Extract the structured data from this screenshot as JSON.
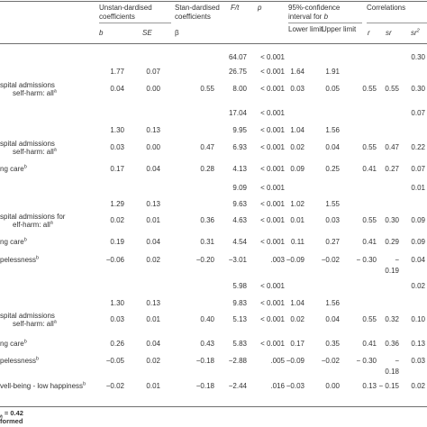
{
  "header": {
    "unstd": "Unstan-dardised coefficients",
    "std": "Stan-dardised coefficients",
    "ft": "F/t",
    "p": "p",
    "ci": "95%-confidence interval for",
    "ci_b": "b",
    "corr": "Correlations"
  },
  "subheader": {
    "b": "b",
    "se": "SE",
    "beta": "β",
    "lower": "Lower limit",
    "upper": "Upper limit",
    "r": "r",
    "sr": "sr",
    "sr2": "sr"
  },
  "rows": [
    {
      "label": "",
      "b": "",
      "se": "",
      "beta": "",
      "ft": "64.07",
      "p": "< 0.001",
      "ll": "",
      "ul": "",
      "r": "",
      "sr": "",
      "sr2": "0.30"
    },
    {
      "label": "",
      "b": "1.77",
      "se": "0.07",
      "beta": "",
      "ft": "26.75",
      "p": "< 0.001",
      "ll": "1.64",
      "ul": "1.91",
      "r": "",
      "sr": "",
      "sr2": ""
    },
    {
      "label": "spital admissions",
      "label2": "self-harm: all",
      "sup": "a",
      "b": "0.04",
      "se": "0.00",
      "beta": "0.55",
      "ft": "8.00",
      "p": "< 0.001",
      "ll": "0.03",
      "ul": "0.05",
      "r": "0.55",
      "sr": "0.55",
      "sr2": "0.30"
    },
    {
      "label": "",
      "b": "",
      "se": "",
      "beta": "",
      "ft": "17.04",
      "p": "< 0.001",
      "ll": "",
      "ul": "",
      "r": "",
      "sr": "",
      "sr2": "0.07"
    },
    {
      "label": "",
      "b": "1.30",
      "se": "0.13",
      "beta": "",
      "ft": "9.95",
      "p": "< 0.001",
      "ll": "1.04",
      "ul": "1.56",
      "r": "",
      "sr": "",
      "sr2": ""
    },
    {
      "label": "spital admissions",
      "label2": "self-harm: all",
      "sup": "a",
      "b": "0.03",
      "se": "0.00",
      "beta": "0.47",
      "ft": "6.93",
      "p": "< 0.001",
      "ll": "0.02",
      "ul": "0.04",
      "r": "0.55",
      "sr": "0.47",
      "sr2": "0.22"
    },
    {
      "label": "ng care",
      "sup": "b",
      "b": "0.17",
      "se": "0.04",
      "beta": "0.28",
      "ft": "4.13",
      "p": "< 0.001",
      "ll": "0.09",
      "ul": "0.25",
      "r": "0.41",
      "sr": "0.27",
      "sr2": "0.07"
    },
    {
      "label": "",
      "b": "",
      "se": "",
      "beta": "",
      "ft": "9.09",
      "p": "< 0.001",
      "ll": "",
      "ul": "",
      "r": "",
      "sr": "",
      "sr2": "0.01"
    },
    {
      "label": "",
      "b": "1.29",
      "se": "0.13",
      "beta": "",
      "ft": "9.63",
      "p": "< 0.001",
      "ll": "1.02",
      "ul": "1.55",
      "r": "",
      "sr": "",
      "sr2": ""
    },
    {
      "label": "spital admissions for",
      "label2": "elf-harm: all",
      "sup": "a",
      "b": "0.02",
      "se": "0.01",
      "beta": "0.36",
      "ft": "4.63",
      "p": "< 0.001",
      "ll": "0.01",
      "ul": "0.03",
      "r": "0.55",
      "sr": "0.30",
      "sr2": "0.09"
    },
    {
      "label": "ng care",
      "sup": "b",
      "b": "0.19",
      "se": "0.04",
      "beta": "0.31",
      "ft": "4.54",
      "p": "< 0.001",
      "ll": "0.11",
      "ul": "0.27",
      "r": "0.41",
      "sr": "0.29",
      "sr2": "0.09"
    },
    {
      "label": "pelessness",
      "sup": "b",
      "b": "−0.06",
      "se": "0.02",
      "beta": "−0.20",
      "ft": "−3.01",
      "p": ".003",
      "ll": "−0.09",
      "ul": "−0.02",
      "r": "− 0.30",
      "sr": "−",
      "sr_b": "0.19",
      "sr2": "0.04"
    },
    {
      "label": "",
      "b": "",
      "se": "",
      "beta": "",
      "ft": "5.98",
      "p": "< 0.001",
      "ll": "",
      "ul": "",
      "r": "",
      "sr": "",
      "sr2": "0.02"
    },
    {
      "label": "",
      "b": "1.30",
      "se": "0.13",
      "beta": "",
      "ft": "9.83",
      "p": "< 0.001",
      "ll": "1.04",
      "ul": "1.56",
      "r": "",
      "sr": "",
      "sr2": ""
    },
    {
      "label": "spital admissions",
      "label2": "self-harm: all",
      "sup": "a",
      "b": "0.03",
      "se": "0.01",
      "beta": "0.40",
      "ft": "5.13",
      "p": "< 0.001",
      "ll": "0.02",
      "ul": "0.04",
      "r": "0.55",
      "sr": "0.32",
      "sr2": "0.10"
    },
    {
      "label": "ng care",
      "sup": "b",
      "b": "0.26",
      "se": "0.04",
      "beta": "0.43",
      "ft": "5.83",
      "p": "< 0.001",
      "ll": "0.17",
      "ul": "0.35",
      "r": "0.41",
      "sr": "0.36",
      "sr2": "0.13"
    },
    {
      "label": "pelessness",
      "sup": "b",
      "b": "−0.05",
      "se": "0.02",
      "beta": "−0.18",
      "ft": "−2.88",
      "p": ".005",
      "ll": "−0.09",
      "ul": "−0.02",
      "r": "− 0.30",
      "sr": "−",
      "sr_b": "0.18",
      "sr2": "0.03"
    },
    {
      "label": "vell-being - low happiness",
      "sup": "b",
      "b": "−0.02",
      "se": "0.01",
      "beta": "−0.18",
      "ft": "−2.44",
      "p": ".016",
      "ll": "−0.03",
      "ul": "0.00",
      "r": "0.13",
      "sr": "− 0.15",
      "sr2": "0.02"
    }
  ],
  "footnotes": {
    "line1": "= 0.42",
    "line1_sub": "a",
    "line2": "formed"
  }
}
